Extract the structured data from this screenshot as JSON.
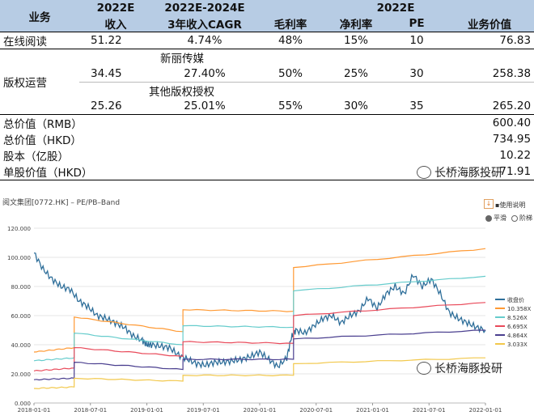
{
  "table": {
    "header1": {
      "col0": "业务",
      "col1": "2022E",
      "col2": "2022E-2024E",
      "col3": "2022E"
    },
    "header2": {
      "c1": "收入",
      "c2": "3年收入CAGR",
      "c3": "毛利率",
      "c4": "净利率",
      "c5": "PE",
      "c6": "业务价值"
    },
    "row_online": {
      "name": "在线阅读",
      "rev": "51.22",
      "cagr": "4.74%",
      "gm": "48%",
      "nm": "15%",
      "pe": "10",
      "val": "76.83"
    },
    "copyright_label": "版权运营",
    "sub1": {
      "name": "新丽传媒",
      "rev": "34.45",
      "cagr": "27.40%",
      "gm": "50%",
      "nm": "25%",
      "pe": "30",
      "val": "258.38"
    },
    "sub2": {
      "name": "其他版权授权",
      "rev": "25.26",
      "cagr": "25.01%",
      "gm": "55%",
      "nm": "30%",
      "pe": "35",
      "val": "265.20"
    },
    "total_rmb": {
      "label": "总价值（RMB）",
      "val": "600.40"
    },
    "total_hkd": {
      "label": "总价值（HKD）",
      "val": "734.95"
    },
    "shares": {
      "label": "股本（亿股）",
      "val": "10.22"
    },
    "per_share": {
      "label": "单股价值（HKD）",
      "val": "71.91"
    }
  },
  "watermark": "长桥海豚投研",
  "chart_header": {
    "title": "阅文集团[0772.HK] – PE/PB–Band",
    "help": "使用说明",
    "smooth": "平滑",
    "step": "阶梯"
  },
  "chart_data": {
    "type": "line",
    "title": "阅文集团[0772.HK] – PE/PB–Band",
    "ylim": [
      0,
      120
    ],
    "yticks": [
      "0.000",
      "20.000",
      "40.000",
      "60.000",
      "80.000",
      "100.000",
      "120.000"
    ],
    "xlim": [
      "2018-01-01",
      "2022-01-01"
    ],
    "xticks": [
      "2018-01-01",
      "2018-07-01",
      "2019-01-01",
      "2019-07-01",
      "2020-01-01",
      "2020-07-01",
      "2021-01-01",
      "2021-07-01",
      "2022-01-01"
    ],
    "legend_position": "right",
    "series": [
      {
        "name": "收盘价",
        "color": "#2f6f9a",
        "x": [
          0,
          0.02,
          0.04,
          0.06,
          0.08,
          0.1,
          0.12,
          0.14,
          0.16,
          0.18,
          0.2,
          0.22,
          0.24,
          0.25,
          0.26,
          0.28,
          0.3,
          0.32,
          0.34,
          0.36,
          0.38,
          0.4,
          0.42,
          0.44,
          0.46,
          0.48,
          0.5,
          0.52,
          0.54,
          0.56,
          0.57,
          0.58,
          0.6,
          0.62,
          0.64,
          0.66,
          0.68,
          0.7,
          0.72,
          0.74,
          0.76,
          0.78,
          0.8,
          0.82,
          0.84,
          0.86,
          0.88,
          0.9,
          0.92,
          0.94,
          0.96,
          0.98,
          1.0
        ],
        "y": [
          103,
          92,
          85,
          80,
          78,
          70,
          66,
          60,
          58,
          55,
          52,
          46,
          43,
          40,
          40,
          39,
          38,
          33,
          30,
          27,
          26,
          28,
          28,
          29,
          30,
          32,
          35,
          30,
          25,
          31,
          45,
          50,
          48,
          53,
          58,
          60,
          55,
          60,
          63,
          72,
          65,
          75,
          80,
          75,
          88,
          80,
          85,
          75,
          62,
          58,
          55,
          52,
          50
        ]
      },
      {
        "name": "10.358X",
        "color": "#ff9933",
        "segments": [
          {
            "x": [
              0,
              0.089
            ],
            "y": [
              35,
              38
            ]
          },
          {
            "x": [
              0.089,
              0.33
            ],
            "y": [
              59,
              49
            ]
          },
          {
            "x": [
              0.33,
              0.575
            ],
            "y": [
              64,
              63
            ]
          },
          {
            "x": [
              0.575,
              1.0
            ],
            "y": [
              93,
              106
            ]
          }
        ]
      },
      {
        "name": "8.526X",
        "color": "#66cccc",
        "segments": [
          {
            "x": [
              0,
              0.089
            ],
            "y": [
              29,
              31
            ]
          },
          {
            "x": [
              0.089,
              0.33
            ],
            "y": [
              48,
              40
            ]
          },
          {
            "x": [
              0.33,
              0.575
            ],
            "y": [
              53,
              52
            ]
          },
          {
            "x": [
              0.575,
              1.0
            ],
            "y": [
              77,
              87
            ]
          }
        ]
      },
      {
        "name": "6.695X",
        "color": "#e94a5a",
        "segments": [
          {
            "x": [
              0,
              0.089
            ],
            "y": [
              22,
              24
            ]
          },
          {
            "x": [
              0.089,
              0.33
            ],
            "y": [
              38,
              32
            ]
          },
          {
            "x": [
              0.33,
              0.575
            ],
            "y": [
              42,
              41
            ]
          },
          {
            "x": [
              0.575,
              1.0
            ],
            "y": [
              60,
              69
            ]
          }
        ]
      },
      {
        "name": "4.864X",
        "color": "#4a3f8f",
        "segments": [
          {
            "x": [
              0,
              0.089
            ],
            "y": [
              16,
              17
            ]
          },
          {
            "x": [
              0.089,
              0.33
            ],
            "y": [
              28,
              23
            ]
          },
          {
            "x": [
              0.33,
              0.575
            ],
            "y": [
              30,
              30
            ]
          },
          {
            "x": [
              0.575,
              1.0
            ],
            "y": [
              44,
              50
            ]
          }
        ]
      },
      {
        "name": "3.033X",
        "color": "#f2c84b",
        "segments": [
          {
            "x": [
              0,
              0.089
            ],
            "y": [
              10,
              11
            ]
          },
          {
            "x": [
              0.089,
              0.33
            ],
            "y": [
              17,
              15
            ]
          },
          {
            "x": [
              0.33,
              0.575
            ],
            "y": [
              19,
              19
            ]
          },
          {
            "x": [
              0.575,
              1.0
            ],
            "y": [
              27,
              31
            ]
          }
        ]
      }
    ]
  }
}
